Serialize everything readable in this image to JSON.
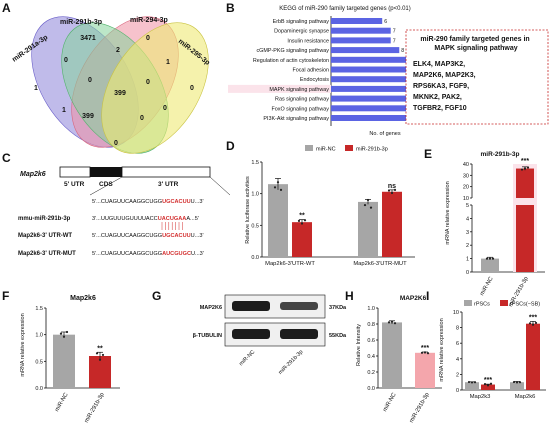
{
  "panels": {
    "a": "A",
    "b": "B",
    "c": "C",
    "d": "D",
    "e": "E",
    "f": "F",
    "g": "G",
    "h": "H",
    "i": "I"
  },
  "colors": {
    "red_bar": "#c62828",
    "grey_bar": "#a6a6a6",
    "pink_bar": "#f4a6ac",
    "highlight": "#fbe3ea",
    "kegg_bar": "#5b64e3",
    "mut_red": "#d32f2f"
  },
  "venn": {
    "labels": {
      "mir291a": "miR-291a-3p",
      "mir291b": "miR-291b-3p",
      "mir294": "miR-294-3p",
      "mir295": "miR-295-3p"
    },
    "counts": {
      "only_a": "1",
      "only_b": "3471",
      "only_c": "0",
      "only_d": "0",
      "ab": "0",
      "bc": "2",
      "cd": "1",
      "ac": "1",
      "abc": "0",
      "bcd": "0",
      "abd": "0",
      "acd": "0",
      "abcd": "399",
      "ad": "399",
      "bd": "0",
      "bottom": "0"
    }
  },
  "kegg": {
    "title": "KEGG of miR-290 family targeted genes (p<0.01)",
    "xlabel": "No. of genes",
    "note_title": "miR-290 family targeted genes in MAPK signaling pathway",
    "note_lines": [
      "ELK4, MAP3K2,",
      "MAP2K6, MAP2K3,",
      "RPS6KA3, FGF9,",
      "MKNK2, PAK2,",
      "TGFBR2, FGF10"
    ]
  },
  "c": {
    "gene": "Map2k6",
    "utr5": "5' UTR",
    "cds": "CDS",
    "utr3": "3' UTR",
    "seq_top": "5'...CUAGUUCAAGGCUGGUGCACUUU...3'",
    "mmu_label": "mmu-miR-291b-3p",
    "mmu_seq": "3'...UUGUUUGUUUUACCUACUGAAA...5'",
    "wt_label": "Map2k6-3' UTR-WT",
    "wt_seq": "5'...CUAGUUCAAGGCUGGUGCACUUU...3'",
    "mut_label": "Map2k6-3' UTR-MUT",
    "mut_seq": "5'...CUAGUUCAAGGCUGGAUCGUGCU...3'"
  },
  "d": {
    "ylabel": "Relative luciferase activities",
    "sig_wt": "**",
    "sig_mut": "ns",
    "legend": [
      "miR-NC",
      "miR-291b-3p"
    ]
  },
  "e": {
    "title": "miR-291b-3p",
    "ylabel": "mRNA  relative expression",
    "sig": "***"
  },
  "f": {
    "title": "Map2k6",
    "ylabel": "mRNA  relative expression",
    "sig": "**"
  },
  "g": {
    "rows": [
      {
        "label": "MAP2K6",
        "size": "37KDa"
      },
      {
        "label": "β-TUBULIN",
        "size": "55KDa"
      }
    ],
    "lanes": [
      "miR-NC",
      "miR-291b-3p"
    ]
  },
  "h": {
    "title": "MAP2K6",
    "ylabel": "Relative Intensity",
    "sig": "***"
  },
  "i": {
    "ylabel": "mRNA  relative expression",
    "legend": [
      "rPSCs",
      "rPSCs(−SB)"
    ],
    "sig": [
      "***",
      "***"
    ]
  },
  "chart_data": [
    {
      "id": "B",
      "type": "bar",
      "orientation": "horizontal",
      "title": "KEGG of miR-290 family targeted genes (p<0.01)",
      "xlabel": "No. of genes",
      "xlim": [
        0,
        15
      ],
      "categories": [
        "ErbB signaling pathway",
        "Dopaminergic synapse",
        "Insulin resistance",
        "cGMP-PKG signaling pathway",
        "Regulation of actin cytoskeleton",
        "Focal adhesion",
        "Endocytosis",
        "MAPK signaling pathway",
        "Ras signaling pathway",
        "FoxO signaling pathway",
        "PI3K-Akt signaling pathway"
      ],
      "values": [
        6,
        7,
        7,
        8,
        9,
        9,
        10,
        10,
        10,
        11,
        15
      ],
      "highlight": "MAPK signaling pathway"
    },
    {
      "id": "D",
      "type": "bar",
      "ylabel": "Relative luciferase activities",
      "ylim": [
        0,
        1.5
      ],
      "yticks": [
        0.0,
        0.5,
        1.0,
        1.5
      ],
      "categories": [
        "Map2k6-3'UTR-WT",
        "Map2k6-3'UTR-MUT"
      ],
      "series": [
        {
          "name": "miR-NC",
          "values": [
            1.15,
            0.87
          ],
          "errors": [
            0.09,
            0.04
          ]
        },
        {
          "name": "miR-291b-3p",
          "values": [
            0.55,
            1.03
          ],
          "errors": [
            0.04,
            0.03
          ]
        }
      ]
    },
    {
      "id": "E",
      "type": "bar",
      "title": "miR-291b-3p",
      "ylabel": "mRNA  relative expression",
      "axis_break": true,
      "yticks": [
        0,
        1,
        2,
        3,
        4,
        5,
        10,
        20,
        30,
        40
      ],
      "categories": [
        "miR-NC",
        "miR-291b-3p"
      ],
      "values": [
        1.0,
        36.0
      ],
      "errors": [
        0.1,
        1.5
      ]
    },
    {
      "id": "F",
      "type": "bar",
      "title": "Map2k6",
      "ylabel": "mRNA  relative expression",
      "ylim": [
        0,
        1.5
      ],
      "yticks": [
        0.0,
        0.5,
        1.0,
        1.5
      ],
      "categories": [
        "miR-NC",
        "miR-291b-3p"
      ],
      "values": [
        1.0,
        0.6
      ],
      "errors": [
        0.05,
        0.07
      ]
    },
    {
      "id": "H",
      "type": "bar",
      "title": "MAP2K6",
      "ylabel": "Relative Intensity",
      "ylim": [
        0,
        1.0
      ],
      "yticks": [
        0.0,
        0.2,
        0.4,
        0.6,
        0.8,
        1.0
      ],
      "categories": [
        "miR-NC",
        "miR-291b-3p"
      ],
      "values": [
        0.82,
        0.44
      ],
      "errors": [
        0.02,
        0.01
      ]
    },
    {
      "id": "I",
      "type": "bar",
      "ylabel": "mRNA  relative expression",
      "ylim": [
        0,
        10
      ],
      "yticks": [
        0,
        2,
        4,
        6,
        8,
        10
      ],
      "categories": [
        "Map2k3",
        "Map2k6"
      ],
      "series": [
        {
          "name": "rPSCs",
          "values": [
            1.0,
            1.0
          ],
          "errors": [
            0.05,
            0.1
          ]
        },
        {
          "name": "rPSCs(−SB)",
          "values": [
            0.7,
            8.5
          ],
          "errors": [
            0.05,
            0.3
          ]
        }
      ]
    }
  ]
}
